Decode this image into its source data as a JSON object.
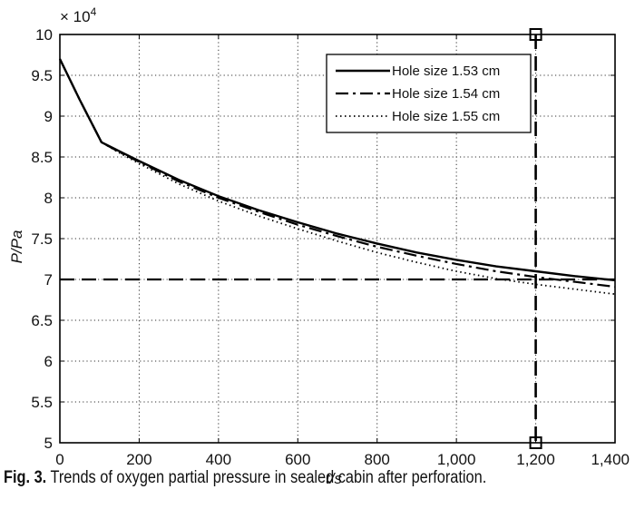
{
  "chart_data": {
    "type": "line",
    "title": "",
    "xlabel": "t/s",
    "ylabel": "P/Pa",
    "y_multiplier_label": "× 10",
    "y_multiplier_exponent": "4",
    "xlim": [
      0,
      1400
    ],
    "ylim": [
      5,
      10
    ],
    "x_ticks": [
      0,
      200,
      400,
      600,
      800,
      1000,
      1200,
      1400
    ],
    "x_tick_labels": [
      "0",
      "200",
      "400",
      "600",
      "800",
      "1,000",
      "1,200",
      "1,400"
    ],
    "y_ticks": [
      5,
      5.5,
      6,
      6.5,
      7,
      7.5,
      8,
      8.5,
      9,
      9.5,
      10
    ],
    "y_tick_labels": [
      "5",
      "5.5",
      "6",
      "6.5",
      "7",
      "7.5",
      "8",
      "8.5",
      "9",
      "9.5",
      "10"
    ],
    "grid": true,
    "legend_position": "top-right",
    "series": [
      {
        "name": "Hole size 1.53 cm",
        "style": "solid",
        "x": [
          0,
          50,
          105,
          150,
          200,
          300,
          400,
          500,
          600,
          700,
          800,
          900,
          1000,
          1100,
          1200,
          1300,
          1400
        ],
        "y": [
          9.7,
          9.2,
          8.68,
          8.57,
          8.45,
          8.22,
          8.02,
          7.85,
          7.7,
          7.56,
          7.44,
          7.33,
          7.24,
          7.16,
          7.1,
          7.04,
          6.99
        ]
      },
      {
        "name": "Hole size 1.54 cm",
        "style": "dashdot",
        "x": [
          0,
          50,
          105,
          150,
          200,
          300,
          400,
          500,
          600,
          700,
          800,
          900,
          1000,
          1100,
          1200,
          1300,
          1400
        ],
        "y": [
          9.7,
          9.2,
          8.68,
          8.56,
          8.44,
          8.2,
          8.0,
          7.83,
          7.67,
          7.53,
          7.4,
          7.29,
          7.19,
          7.1,
          7.03,
          6.97,
          6.91
        ]
      },
      {
        "name": "Hole size 1.55 cm",
        "style": "dotted",
        "x": [
          0,
          50,
          105,
          150,
          200,
          300,
          400,
          500,
          600,
          700,
          800,
          900,
          1000,
          1100,
          1200,
          1300,
          1400
        ],
        "y": [
          9.7,
          9.2,
          8.68,
          8.55,
          8.42,
          8.17,
          7.96,
          7.78,
          7.62,
          7.47,
          7.33,
          7.21,
          7.1,
          7.01,
          6.94,
          6.88,
          6.82
        ]
      }
    ],
    "reference_lines": [
      {
        "orientation": "horizontal",
        "value": 7,
        "style": "dashed"
      },
      {
        "orientation": "vertical",
        "value": 1200,
        "style": "dashed",
        "end_markers": "square"
      }
    ]
  },
  "caption": {
    "label": "Fig. 3.",
    "text": " Trends of oxygen partial pressure in sealed cabin after perforation."
  }
}
